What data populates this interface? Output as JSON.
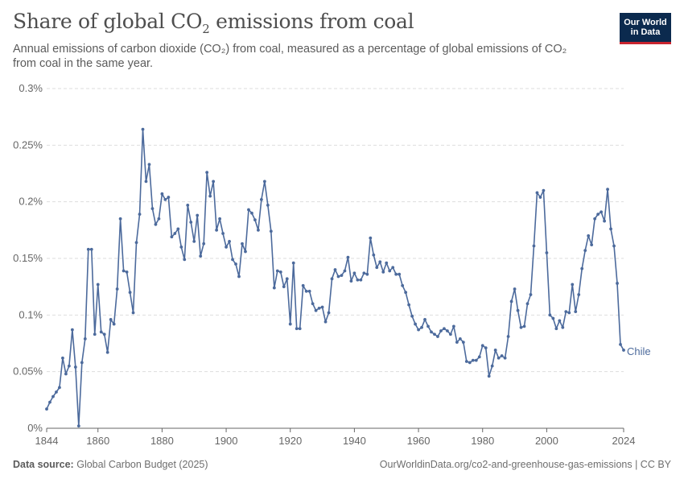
{
  "header": {
    "title_main": "Share of global CO",
    "title_sub": "2",
    "title_tail": " emissions from coal",
    "subtitle": "Annual emissions of carbon dioxide (CO₂) from coal, measured as a percentage of global emissions of CO₂ from coal in the same year.",
    "logo_line1": "Our World",
    "logo_line2": "in Data"
  },
  "footer": {
    "source_label": "Data source:",
    "source_value": "Global Carbon Budget (2025)",
    "url_license": "OurWorldinData.org/co2-and-greenhouse-gas-emissions | CC BY"
  },
  "colors": {
    "series": "#4c6a9c",
    "grid": "#dddddd",
    "axis": "#666666",
    "tick_text": "#666666",
    "logo_bg": "#0b2a4e",
    "logo_accent": "#c9242f"
  },
  "chart_data": {
    "type": "line",
    "unit": "%",
    "y_ticks": [
      "0%",
      "0.05%",
      "0.1%",
      "0.15%",
      "0.2%",
      "0.25%",
      "0.3%"
    ],
    "y_tick_values": [
      0,
      0.05,
      0.1,
      0.15,
      0.2,
      0.25,
      0.3
    ],
    "x_ticks": [
      "1844",
      "1860",
      "1880",
      "1900",
      "1920",
      "1940",
      "1960",
      "1980",
      "2000",
      "2024"
    ],
    "x_tick_values": [
      1844,
      1860,
      1880,
      1900,
      1920,
      1940,
      1960,
      1980,
      2000,
      2024
    ],
    "xlim": [
      1844,
      2024
    ],
    "ylim": [
      0,
      0.3
    ],
    "grid": "horizontal dashed",
    "series": [
      {
        "name": "Chile",
        "x": [
          1844,
          1845,
          1846,
          1847,
          1848,
          1849,
          1850,
          1851,
          1852,
          1853,
          1854,
          1855,
          1856,
          1857,
          1858,
          1859,
          1860,
          1861,
          1862,
          1863,
          1864,
          1865,
          1866,
          1867,
          1868,
          1869,
          1870,
          1871,
          1872,
          1873,
          1874,
          1875,
          1876,
          1877,
          1878,
          1879,
          1880,
          1881,
          1882,
          1883,
          1884,
          1885,
          1886,
          1887,
          1888,
          1889,
          1890,
          1891,
          1892,
          1893,
          1894,
          1895,
          1896,
          1897,
          1898,
          1899,
          1900,
          1901,
          1902,
          1903,
          1904,
          1905,
          1906,
          1907,
          1908,
          1909,
          1910,
          1911,
          1912,
          1913,
          1914,
          1915,
          1916,
          1917,
          1918,
          1919,
          1920,
          1921,
          1922,
          1923,
          1924,
          1925,
          1926,
          1927,
          1928,
          1929,
          1930,
          1931,
          1932,
          1933,
          1934,
          1935,
          1936,
          1937,
          1938,
          1939,
          1940,
          1941,
          1942,
          1943,
          1944,
          1945,
          1946,
          1947,
          1948,
          1949,
          1950,
          1951,
          1952,
          1953,
          1954,
          1955,
          1956,
          1957,
          1958,
          1959,
          1960,
          1961,
          1962,
          1963,
          1964,
          1965,
          1966,
          1967,
          1968,
          1969,
          1970,
          1971,
          1972,
          1973,
          1974,
          1975,
          1976,
          1977,
          1978,
          1979,
          1980,
          1981,
          1982,
          1983,
          1984,
          1985,
          1986,
          1987,
          1988,
          1989,
          1990,
          1991,
          1992,
          1993,
          1994,
          1995,
          1996,
          1997,
          1998,
          1999,
          2000,
          2001,
          2002,
          2003,
          2004,
          2005,
          2006,
          2007,
          2008,
          2009,
          2010,
          2011,
          2012,
          2013,
          2014,
          2015,
          2016,
          2017,
          2018,
          2019,
          2020,
          2021,
          2022,
          2023,
          2024
        ],
        "values": [
          0.017,
          0.023,
          0.028,
          0.032,
          0.036,
          0.062,
          0.048,
          0.055,
          0.087,
          0.054,
          0.002,
          0.058,
          0.079,
          0.158,
          0.158,
          0.083,
          0.127,
          0.085,
          0.083,
          0.067,
          0.096,
          0.092,
          0.123,
          0.185,
          0.139,
          0.138,
          0.12,
          0.102,
          0.164,
          0.189,
          0.264,
          0.218,
          0.233,
          0.194,
          0.18,
          0.185,
          0.207,
          0.202,
          0.204,
          0.169,
          0.172,
          0.176,
          0.16,
          0.149,
          0.197,
          0.182,
          0.165,
          0.188,
          0.152,
          0.163,
          0.226,
          0.205,
          0.218,
          0.175,
          0.185,
          0.172,
          0.16,
          0.165,
          0.149,
          0.145,
          0.134,
          0.163,
          0.156,
          0.193,
          0.19,
          0.184,
          0.175,
          0.202,
          0.218,
          0.197,
          0.174,
          0.124,
          0.139,
          0.138,
          0.125,
          0.132,
          0.092,
          0.146,
          0.088,
          0.088,
          0.126,
          0.121,
          0.121,
          0.11,
          0.104,
          0.106,
          0.107,
          0.094,
          0.102,
          0.132,
          0.14,
          0.134,
          0.135,
          0.139,
          0.151,
          0.13,
          0.137,
          0.131,
          0.131,
          0.137,
          0.136,
          0.168,
          0.153,
          0.142,
          0.147,
          0.138,
          0.146,
          0.139,
          0.142,
          0.136,
          0.136,
          0.126,
          0.12,
          0.109,
          0.099,
          0.092,
          0.087,
          0.089,
          0.096,
          0.09,
          0.085,
          0.083,
          0.081,
          0.086,
          0.088,
          0.086,
          0.083,
          0.09,
          0.076,
          0.079,
          0.076,
          0.059,
          0.058,
          0.06,
          0.06,
          0.063,
          0.073,
          0.071,
          0.046,
          0.055,
          0.069,
          0.062,
          0.064,
          0.062,
          0.081,
          0.112,
          0.123,
          0.104,
          0.089,
          0.09,
          0.11,
          0.118,
          0.161,
          0.208,
          0.204,
          0.21,
          0.155,
          0.1,
          0.097,
          0.088,
          0.095,
          0.089,
          0.103,
          0.102,
          0.127,
          0.103,
          0.118,
          0.141,
          0.157,
          0.17,
          0.162,
          0.185,
          0.189,
          0.191,
          0.183,
          0.211,
          0.176,
          0.161,
          0.128,
          0.074,
          0.069
        ]
      }
    ]
  }
}
